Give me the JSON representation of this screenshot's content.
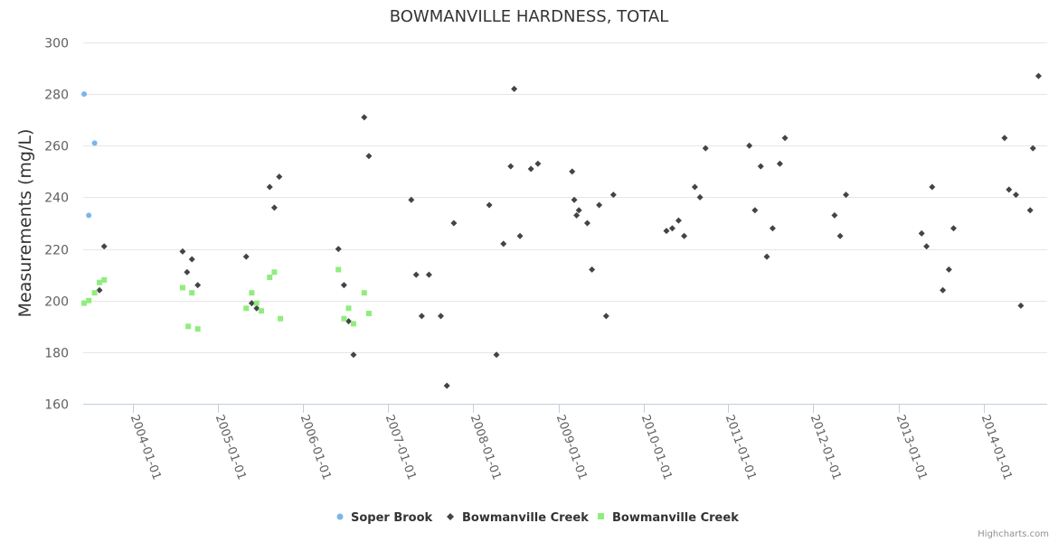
{
  "chart_data": {
    "type": "scatter",
    "title": "BOWMANVILLE HARDNESS, TOTAL",
    "ylabel": "Measurements (mg/L)",
    "xlabel": "",
    "ylim": [
      160,
      300
    ],
    "yticks": [
      160,
      180,
      200,
      220,
      240,
      260,
      280,
      300
    ],
    "xlim": [
      "2003-06-01",
      "2014-10-01"
    ],
    "xticks": [
      "2004-01-01",
      "2005-01-01",
      "2006-01-01",
      "2007-01-01",
      "2008-01-01",
      "2009-01-01",
      "2010-01-01",
      "2011-01-01",
      "2012-01-01",
      "2013-01-01",
      "2014-01-01"
    ],
    "grid": true,
    "legend_position": "bottom-center",
    "series": [
      {
        "name": "Soper Brook",
        "color": "#7cb5ec",
        "marker": "circle",
        "points": [
          [
            "2003-06-05",
            280
          ],
          [
            "2003-06-25",
            233
          ],
          [
            "2003-07-20",
            261
          ]
        ]
      },
      {
        "name": "Bowmanville Creek",
        "color": "#434348",
        "marker": "diamond",
        "points": [
          [
            "2003-08-10",
            204
          ],
          [
            "2003-08-30",
            221
          ],
          [
            "2004-08-01",
            219
          ],
          [
            "2004-08-20",
            211
          ],
          [
            "2004-09-10",
            216
          ],
          [
            "2004-10-05",
            206
          ],
          [
            "2005-05-01",
            217
          ],
          [
            "2005-05-25",
            199
          ],
          [
            "2005-06-15",
            197
          ],
          [
            "2005-08-10",
            244
          ],
          [
            "2005-08-30",
            236
          ],
          [
            "2005-09-20",
            248
          ],
          [
            "2006-06-01",
            220
          ],
          [
            "2006-06-25",
            206
          ],
          [
            "2006-07-15",
            192
          ],
          [
            "2006-08-05",
            179
          ],
          [
            "2006-09-20",
            271
          ],
          [
            "2006-10-10",
            256
          ],
          [
            "2007-04-10",
            239
          ],
          [
            "2007-05-01",
            210
          ],
          [
            "2007-05-25",
            194
          ],
          [
            "2007-06-25",
            210
          ],
          [
            "2007-08-15",
            194
          ],
          [
            "2007-09-10",
            167
          ],
          [
            "2007-10-10",
            230
          ],
          [
            "2008-03-10",
            237
          ],
          [
            "2008-04-10",
            179
          ],
          [
            "2008-05-10",
            222
          ],
          [
            "2008-06-10",
            252
          ],
          [
            "2008-06-25",
            282
          ],
          [
            "2008-07-20",
            225
          ],
          [
            "2008-09-05",
            251
          ],
          [
            "2008-10-05",
            253
          ],
          [
            "2009-03-01",
            250
          ],
          [
            "2009-03-10",
            239
          ],
          [
            "2009-03-20",
            233
          ],
          [
            "2009-03-30",
            235
          ],
          [
            "2009-05-05",
            230
          ],
          [
            "2009-05-25",
            212
          ],
          [
            "2009-06-25",
            237
          ],
          [
            "2009-07-25",
            194
          ],
          [
            "2009-08-25",
            241
          ],
          [
            "2010-04-10",
            227
          ],
          [
            "2010-05-05",
            228
          ],
          [
            "2010-06-01",
            231
          ],
          [
            "2010-06-25",
            225
          ],
          [
            "2010-08-10",
            244
          ],
          [
            "2010-09-01",
            240
          ],
          [
            "2010-09-25",
            259
          ],
          [
            "2011-04-01",
            260
          ],
          [
            "2011-04-25",
            235
          ],
          [
            "2011-05-20",
            252
          ],
          [
            "2011-06-15",
            217
          ],
          [
            "2011-07-10",
            228
          ],
          [
            "2011-08-10",
            253
          ],
          [
            "2011-09-01",
            263
          ],
          [
            "2012-04-01",
            233
          ],
          [
            "2012-04-25",
            225
          ],
          [
            "2012-05-20",
            241
          ],
          [
            "2013-04-10",
            226
          ],
          [
            "2013-05-01",
            221
          ],
          [
            "2013-05-25",
            244
          ],
          [
            "2013-07-10",
            204
          ],
          [
            "2013-08-05",
            212
          ],
          [
            "2013-08-25",
            228
          ],
          [
            "2014-04-01",
            263
          ],
          [
            "2014-04-20",
            243
          ],
          [
            "2014-05-20",
            241
          ],
          [
            "2014-06-10",
            198
          ],
          [
            "2014-07-20",
            235
          ],
          [
            "2014-08-01",
            259
          ],
          [
            "2014-08-25",
            287
          ]
        ]
      },
      {
        "name": "Bowmanville Creek",
        "color": "#90ed7d",
        "marker": "square",
        "points": [
          [
            "2003-06-05",
            199
          ],
          [
            "2003-06-25",
            200
          ],
          [
            "2003-07-20",
            203
          ],
          [
            "2003-08-10",
            207
          ],
          [
            "2003-08-30",
            208
          ],
          [
            "2004-08-01",
            205
          ],
          [
            "2004-08-25",
            190
          ],
          [
            "2004-09-10",
            203
          ],
          [
            "2004-10-05",
            189
          ],
          [
            "2005-05-01",
            197
          ],
          [
            "2005-05-25",
            203
          ],
          [
            "2005-06-15",
            199
          ],
          [
            "2005-07-05",
            196
          ],
          [
            "2005-08-10",
            209
          ],
          [
            "2005-08-30",
            211
          ],
          [
            "2005-09-25",
            193
          ],
          [
            "2006-06-01",
            212
          ],
          [
            "2006-06-25",
            193
          ],
          [
            "2006-07-15",
            197
          ],
          [
            "2006-08-05",
            191
          ],
          [
            "2006-09-20",
            203
          ],
          [
            "2006-10-10",
            195
          ]
        ]
      }
    ]
  },
  "legend": {
    "items": [
      "Soper Brook",
      "Bowmanville Creek",
      "Bowmanville Creek"
    ]
  },
  "credits": "Highcharts.com"
}
